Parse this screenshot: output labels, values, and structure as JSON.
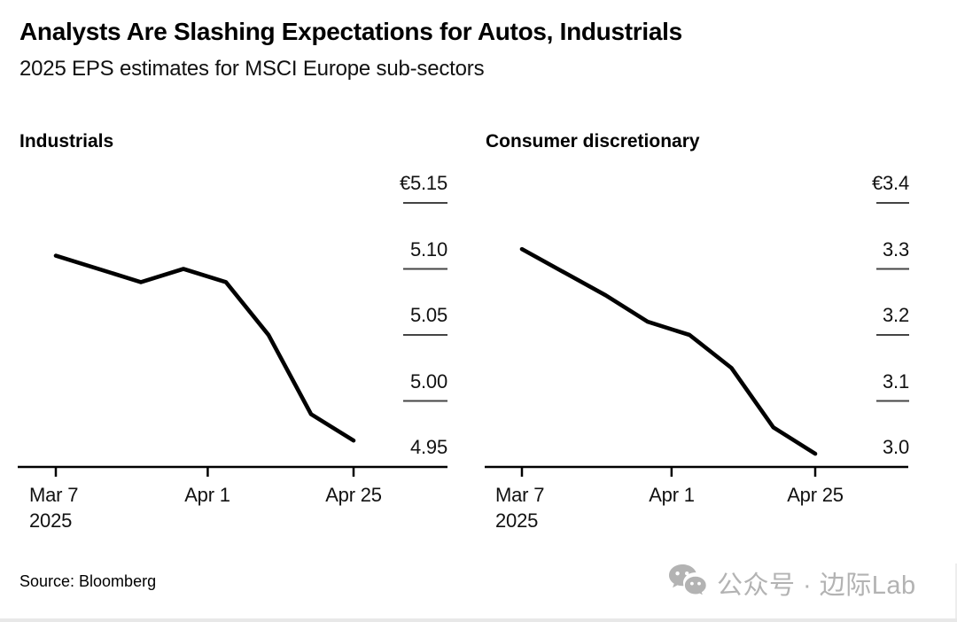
{
  "header": {
    "title": "Analysts Are Slashing Expectations for Autos, Industrials",
    "subtitle": "2025 EPS estimates for MSCI Europe sub-sectors"
  },
  "footer": {
    "source": "Source: Bloomberg",
    "watermark": {
      "icon": "wechat-icon",
      "text": "公众号 · 边际Lab"
    }
  },
  "colors": {
    "line": "#000000",
    "axis": "#000000",
    "gridline": "#444444",
    "watermark": "#b3b3b3"
  },
  "chart_data": [
    {
      "type": "line",
      "title": "Industrials",
      "unit": "EUR",
      "x": [
        "Mar 7",
        "Mar 21",
        "Mar 28",
        "Apr 4",
        "Apr 11",
        "Apr 18",
        "Apr 25"
      ],
      "x_days": [
        0,
        14,
        21,
        28,
        35,
        42,
        49
      ],
      "values": [
        5.11,
        5.09,
        5.1,
        5.09,
        5.05,
        4.99,
        4.97
      ],
      "ylim": [
        4.95,
        5.15
      ],
      "y_ticks": [
        "€5.15",
        "5.10",
        "5.05",
        "5.00",
        "4.95"
      ],
      "y_tick_values": [
        5.15,
        5.1,
        5.05,
        5.0,
        4.95
      ],
      "x_tick_labels": [
        "Mar 7",
        "Apr 1",
        "Apr 25"
      ],
      "x_tick_days": [
        0,
        25,
        49
      ],
      "x_year_label": "2025",
      "legend": "none",
      "grid": "short-dashes-at-right-axis-labels"
    },
    {
      "type": "line",
      "title": "Consumer discretionary",
      "unit": "EUR",
      "x": [
        "Mar 7",
        "Mar 21",
        "Mar 28",
        "Apr 4",
        "Apr 11",
        "Apr 18",
        "Apr 25"
      ],
      "x_days": [
        0,
        14,
        21,
        28,
        35,
        42,
        49
      ],
      "values": [
        3.33,
        3.26,
        3.22,
        3.2,
        3.15,
        3.06,
        3.02
      ],
      "ylim": [
        3.0,
        3.4
      ],
      "y_ticks": [
        "€3.4",
        "3.3",
        "3.2",
        "3.1",
        "3.0"
      ],
      "y_tick_values": [
        3.4,
        3.3,
        3.2,
        3.1,
        3.0
      ],
      "x_tick_labels": [
        "Mar 7",
        "Apr 1",
        "Apr 25"
      ],
      "x_tick_days": [
        0,
        25,
        49
      ],
      "x_year_label": "2025",
      "legend": "none",
      "grid": "short-dashes-at-right-axis-labels"
    }
  ]
}
